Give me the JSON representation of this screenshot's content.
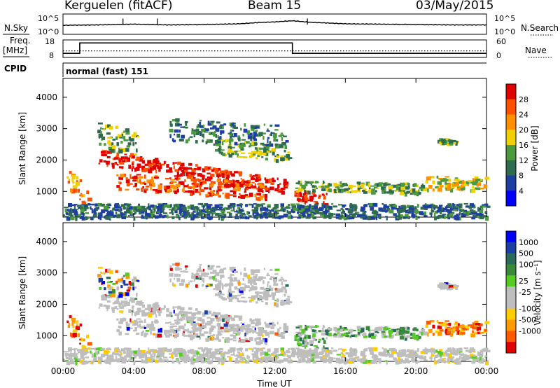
{
  "header": {
    "station": "Kerguelen (fitACF)",
    "beam": "Beam 15",
    "date": "03/May/2015"
  },
  "colors": {
    "power_scale": [
      "#0000ff",
      "#1f3fa0",
      "#2e6b4f",
      "#4c9a3e",
      "#f0d000",
      "#ff9000",
      "#ff5000",
      "#e00000"
    ],
    "velocity_scale": [
      "#e00000",
      "#ff5a00",
      "#ff9a00",
      "#ffcc00",
      "#bebebe",
      "#bebebe",
      "#55cc22",
      "#3a8a3a",
      "#2a6a5a",
      "#1c3fa5",
      "#0000ff"
    ],
    "ground_scatter": "#bebebe"
  },
  "chart_data": [
    {
      "type": "line",
      "name": "nsky-nsearch",
      "left_label": "N.Sky",
      "right_label": "N.Search",
      "left_ticks": [
        "10^5",
        "10^0"
      ],
      "right_ticks": [
        "10^5",
        "10^0"
      ],
      "x_range_hours": [
        0,
        24
      ],
      "series": [
        {
          "x": [
            0,
            2,
            4,
            6,
            8,
            10,
            11,
            12,
            13,
            14,
            16,
            18,
            20,
            22,
            24
          ],
          "y_log10": [
            2.2,
            2.3,
            2.5,
            2.3,
            2.4,
            2.6,
            2.9,
            3.1,
            3.4,
            3.0,
            2.6,
            2.5,
            2.4,
            2.3,
            2.3
          ]
        }
      ]
    },
    {
      "type": "line",
      "name": "freq-nave",
      "left_label": "Freq. [MHz]",
      "right_label": "Nave",
      "left_ticks": [
        "18",
        "8"
      ],
      "right_ticks": [
        "60",
        "0"
      ],
      "series": [
        {
          "name": "Freq",
          "x": [
            0,
            0.95,
            0.95,
            13.0,
            13.0,
            24
          ],
          "y": [
            10,
            10,
            16.2,
            16.2,
            10,
            10
          ]
        },
        {
          "name": "Nave",
          "x": [
            0,
            24
          ],
          "y": [
            21,
            21
          ]
        }
      ]
    },
    {
      "type": "heatmap",
      "name": "power",
      "cpid_label": "CPID",
      "cpid_text": "normal (fast) 151",
      "ylabel": "Slant Range [km]",
      "yticks": [
        "1000",
        "2000",
        "3000",
        "4000"
      ],
      "ylim_km": [
        180,
        4600
      ],
      "colorbar_label": "Power [dB]",
      "colorbar_ticks": [
        "4",
        "8",
        "12",
        "16",
        "20",
        "24",
        "28"
      ],
      "colorbar_range": [
        0,
        32
      ]
    },
    {
      "type": "heatmap",
      "name": "velocity",
      "ylabel": "Slant Range [km]",
      "yticks": [
        "1000",
        "2000",
        "3000",
        "4000"
      ],
      "ylim_km": [
        180,
        4600
      ],
      "colorbar_label": "Velocity [m s⁻¹]",
      "colorbar_ticks": [
        "1000",
        "500",
        "100",
        "25",
        "-25",
        "-100",
        "-500",
        "-1000"
      ],
      "xlabel": "Time UT",
      "xticks": [
        "00:00",
        "04:00",
        "08:00",
        "12:00",
        "16:00",
        "20:00",
        "00:00"
      ]
    }
  ]
}
